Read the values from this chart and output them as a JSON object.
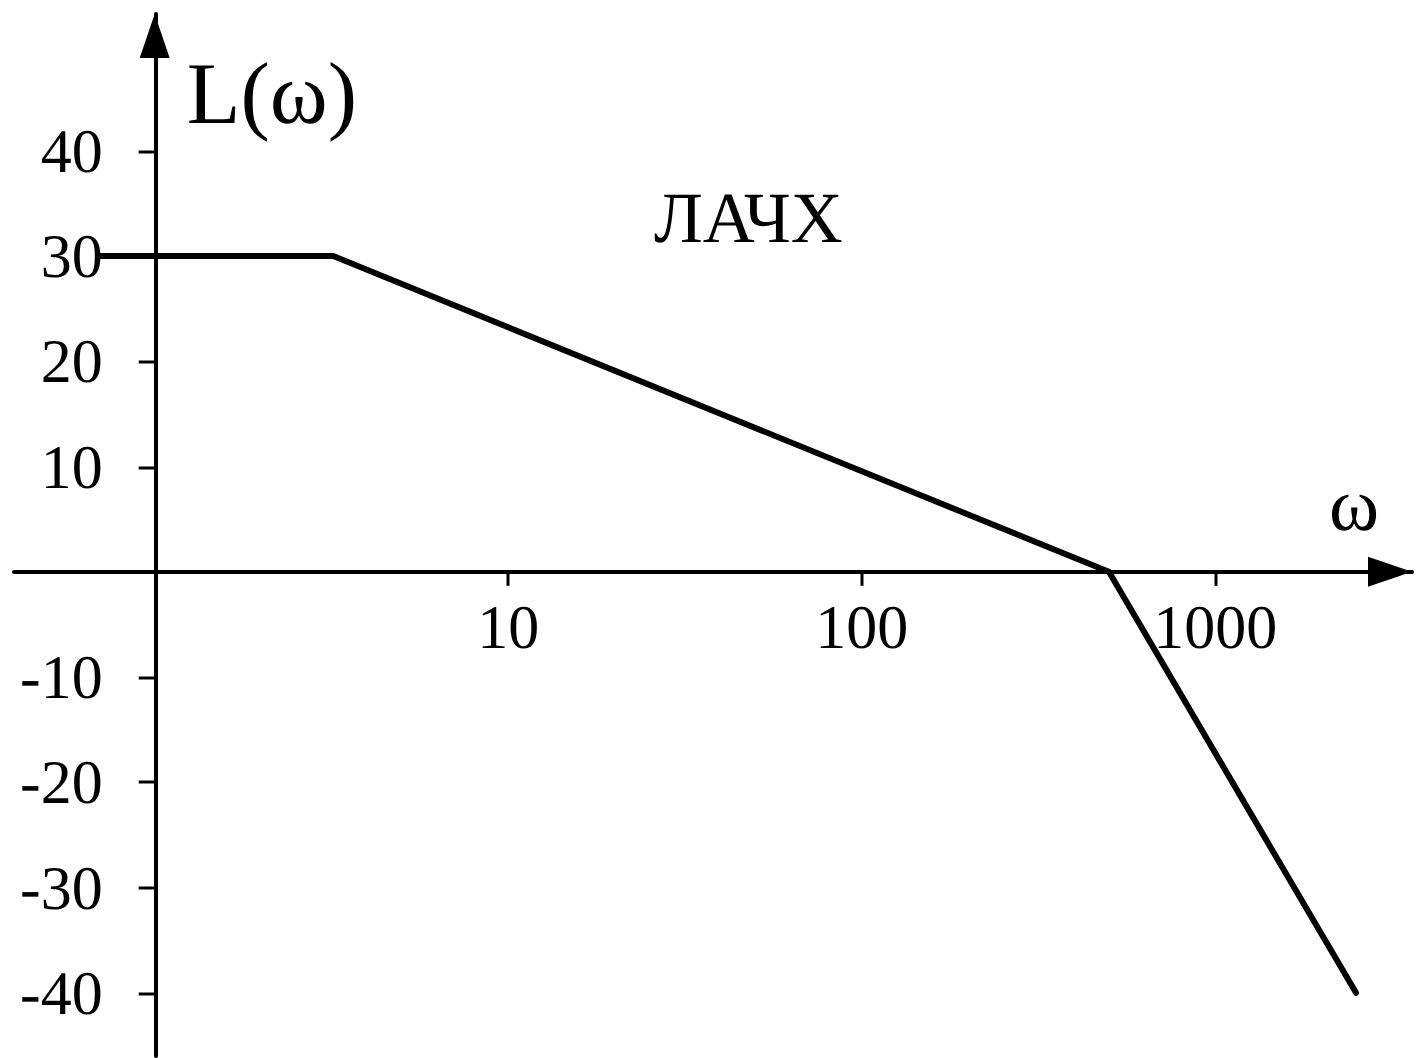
{
  "chart_data": {
    "type": "line",
    "title": "ЛАЧХ",
    "xlabel": "ω",
    "ylabel": "L(ω)",
    "x": [
      0.7,
      3.2,
      500,
      2500
    ],
    "values": [
      30,
      30,
      0,
      -40
    ],
    "color": "#000000",
    "xlim": [
      0.4,
      3600
    ],
    "xticks": [
      10,
      100,
      1000
    ],
    "ylim": [
      -46,
      53
    ],
    "yticks": [
      -40,
      -30,
      -20,
      -10,
      10,
      20,
      30,
      40
    ],
    "log": "x",
    "grid": false,
    "marker": "none",
    "line_style": "solid"
  }
}
